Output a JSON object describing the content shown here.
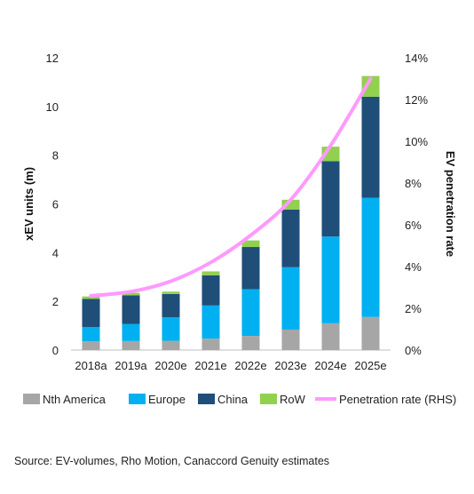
{
  "chart_data": {
    "type": "bar",
    "stacked": true,
    "categories": [
      "2018a",
      "2019a",
      "2020e",
      "2021e",
      "2022e",
      "2023e",
      "2024e",
      "2025e"
    ],
    "series": [
      {
        "name": "Nth America",
        "color": "#a6a6a6",
        "values": [
          0.36,
          0.37,
          0.38,
          0.47,
          0.58,
          0.84,
          1.1,
          1.36
        ]
      },
      {
        "name": "Europe",
        "color": "#00b0f0",
        "values": [
          0.58,
          0.7,
          0.97,
          1.36,
          1.92,
          2.56,
          3.56,
          4.89
        ]
      },
      {
        "name": "China",
        "color": "#1f4e79",
        "values": [
          1.16,
          1.18,
          0.95,
          1.24,
          1.73,
          2.37,
          3.09,
          4.15
        ]
      },
      {
        "name": "RoW",
        "color": "#92d050",
        "values": [
          0.1,
          0.1,
          0.1,
          0.16,
          0.27,
          0.4,
          0.6,
          0.85
        ]
      }
    ],
    "line": {
      "name": "Penetration rate (RHS)",
      "color": "#ff99ff",
      "values": [
        2.6,
        2.8,
        3.3,
        4.2,
        5.5,
        7.2,
        9.8,
        13.0
      ]
    },
    "ylabel": "xEV units (m)",
    "ylabel_right": "EV penetration rate",
    "ylim": [
      0,
      12
    ],
    "ylim_right": [
      0,
      14
    ],
    "yticks": [
      "0",
      "2",
      "4",
      "6",
      "8",
      "10",
      "12"
    ],
    "yticks_right": [
      "0%",
      "2%",
      "4%",
      "6%",
      "8%",
      "10%",
      "12%",
      "14%"
    ],
    "grid": false,
    "legend_position": "bottom"
  },
  "source_text": "Source: EV-volumes, Rho Motion, Canaccord Genuity estimates"
}
